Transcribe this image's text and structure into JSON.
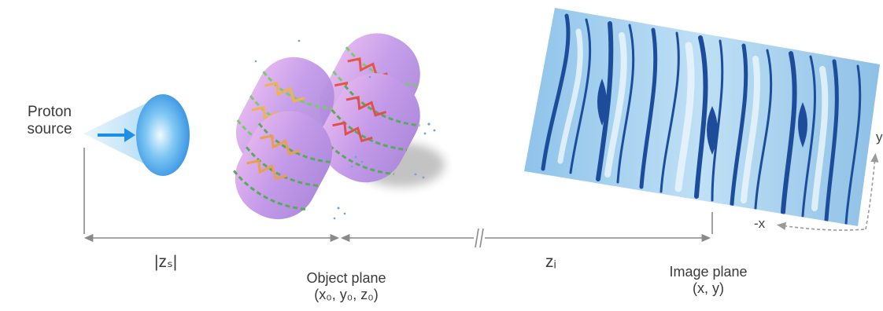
{
  "labels": {
    "source_line1": "Proton",
    "source_line2": "source",
    "zs_label": "|zₛ|",
    "zi_label": "zᵢ",
    "object_plane": "Object plane",
    "object_coords": "(x₀, y₀, z₀)",
    "image_plane": "Image plane",
    "image_coords": "(x, y)",
    "minus_x": "-x",
    "y_axis": "y"
  },
  "colors": {
    "axis_line": "#8a8a8a",
    "dashed_axis": "#9a9a9a",
    "beam_arrow": "#1e8fe8",
    "cone": "#bfe3f7",
    "lens": "#3a9ee8",
    "lens_highlight": "#d9f0ff",
    "image_dark": "#1d4d9a",
    "image_light": "#d8ecf8",
    "iso_purple": "#c9a3e8",
    "iso_pink": "#e9a3d6"
  },
  "icons": {
    "beam": "right-arrow-icon",
    "lens": "ellipse-lens-icon"
  }
}
